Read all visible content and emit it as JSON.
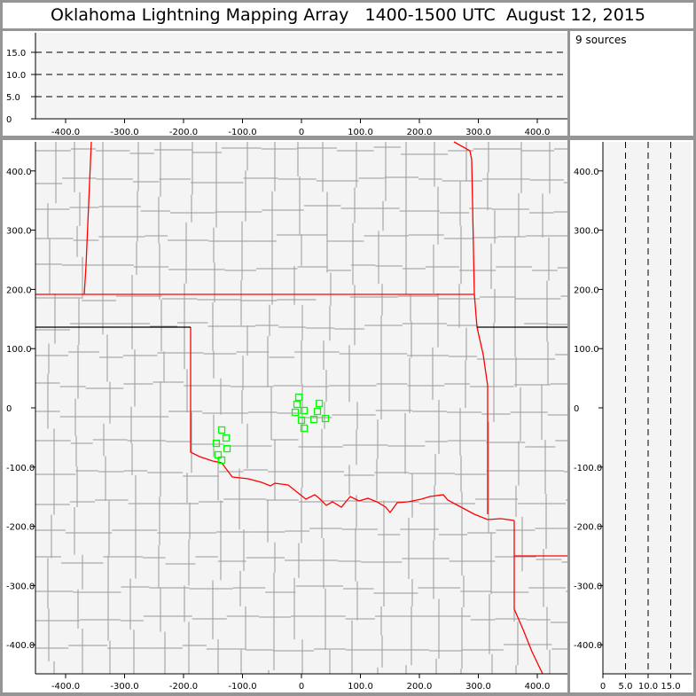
{
  "title": "Oklahoma Lightning Mapping Array   1400-1500 UTC  August 12, 2015",
  "source_count_label": "9 sources",
  "colors": {
    "frame": "#959595",
    "plot_bg": "#f4f4f4",
    "county": "#999999",
    "state_border": "#ff0000",
    "source": "#00ff00"
  },
  "chart_data": [
    {
      "type": "line",
      "name": "altitude-vs-east-west",
      "xlim": [
        -460,
        440
      ],
      "ylim": [
        0,
        19.4
      ],
      "x_ticks": [
        "-400.0",
        "-300.0",
        "-200.0",
        "-100.0",
        "0",
        "100.0",
        "200.0",
        "300.0",
        "400.0"
      ],
      "y_ticks": [
        "0",
        "5.0",
        "10.0",
        "15.0"
      ],
      "reference_lines": [
        5,
        10,
        15
      ],
      "grid": false
    },
    {
      "type": "scatter",
      "name": "plan-view-map",
      "xlim": [
        -460,
        440
      ],
      "ylim": [
        -450,
        450
      ],
      "x_ticks": [
        "-400.0",
        "-300.0",
        "-200.0",
        "-100.0",
        "0",
        "100.0",
        "200.0",
        "300.0",
        "400.0"
      ],
      "y_ticks": [
        "-400.0",
        "-300.0",
        "-200.0",
        "-100.0",
        "0",
        "100.0",
        "200.0",
        "300.0",
        "400.0"
      ],
      "marker": "square",
      "points": [
        [
          -4.5,
          18.0
        ],
        [
          -7.5,
          6.0
        ],
        [
          30.1,
          7.5
        ],
        [
          -10.5,
          -7.5
        ],
        [
          4.5,
          -4.5
        ],
        [
          27.1,
          -6.0
        ],
        [
          0,
          -21.0
        ],
        [
          21.1,
          -19.5
        ],
        [
          40.6,
          -18.0
        ],
        [
          4.5,
          -34.4
        ],
        [
          -135.3,
          -37.4
        ],
        [
          -127.8,
          -50.9
        ],
        [
          -144.4,
          -59.9
        ],
        [
          -126.3,
          -68.9
        ],
        [
          -141.4,
          -79.3
        ],
        [
          -135.3,
          -88.3
        ]
      ]
    },
    {
      "type": "line",
      "name": "altitude-vs-north-south",
      "xlim": [
        0,
        19.6
      ],
      "ylim": [
        -450,
        450
      ],
      "x_ticks": [
        "0",
        "5.0",
        "10.0",
        "15.0"
      ],
      "y_ticks": [
        "-400.0",
        "-300.0",
        "-200.0",
        "-100.0",
        "0",
        "100.0",
        "200.0",
        "300.0",
        "400.0"
      ],
      "reference_lines": [
        5,
        10,
        15
      ],
      "grid": false
    }
  ]
}
